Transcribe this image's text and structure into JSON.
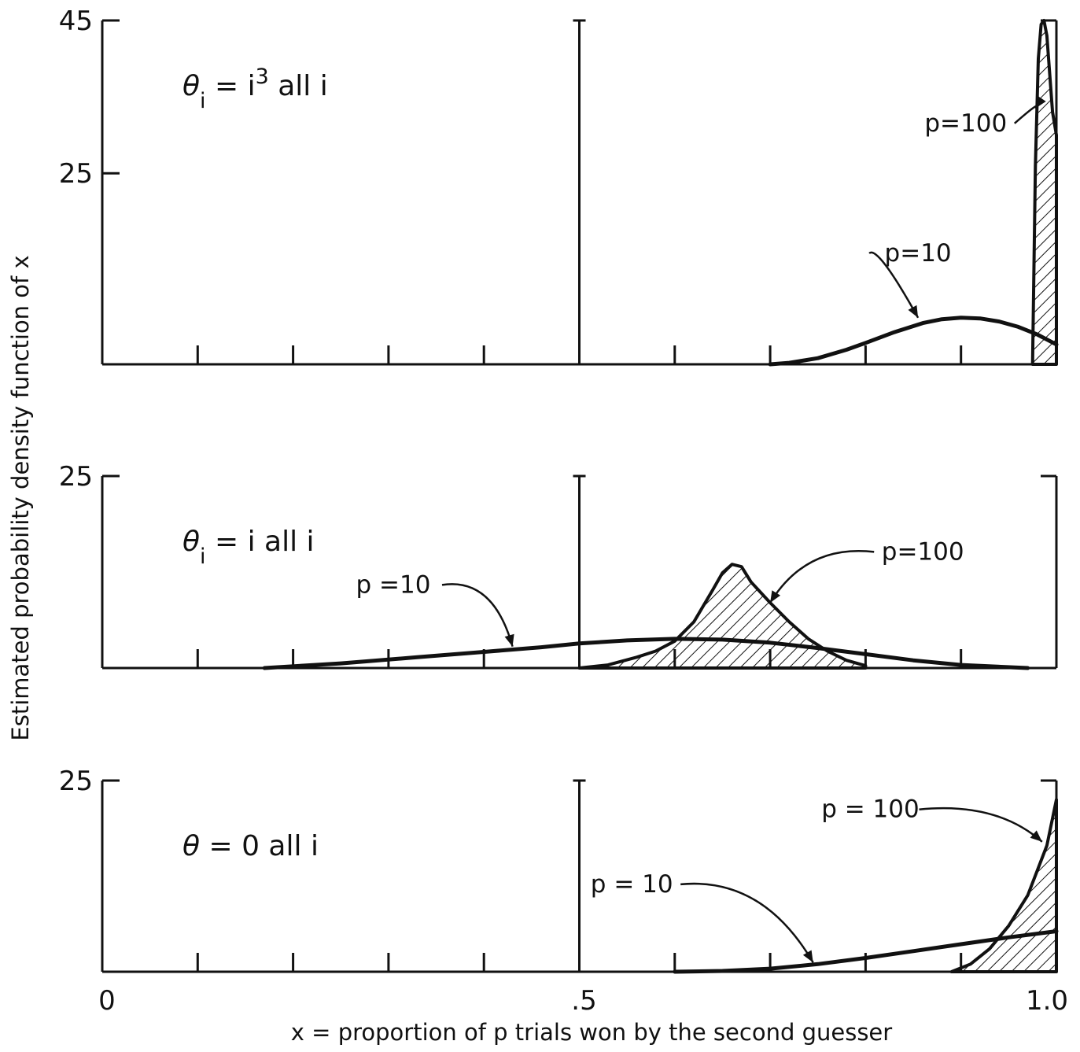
{
  "chart_data": {
    "type": "line",
    "xlabel": "x = proportion of p trials won by the second guesser",
    "ylabel": "Estimated probability density function of x",
    "x_ticks": [
      "0",
      ".5",
      "1.0"
    ],
    "xlim": [
      0,
      1
    ],
    "panels": [
      {
        "label": "θ_i = i³ all i",
        "label_parts": {
          "sym": "θ",
          "sub": "i",
          "mid": " = i",
          "sup": "3",
          "end": " all i"
        },
        "ylim": [
          0,
          45
        ],
        "y_ticks": [
          "25",
          "45"
        ],
        "y_tick_values": [
          25,
          45
        ],
        "series": [
          {
            "name": "p=10",
            "hatched": false,
            "x": [
              0.7,
              0.72,
              0.75,
              0.78,
              0.8,
              0.83,
              0.86,
              0.88,
              0.9,
              0.92,
              0.94,
              0.96,
              0.98,
              1.0
            ],
            "y": [
              0,
              0.2,
              0.8,
              1.9,
              2.8,
              4.2,
              5.4,
              5.9,
              6.1,
              6.0,
              5.6,
              4.9,
              3.9,
              2.6
            ]
          },
          {
            "name": "p=100",
            "hatched": true,
            "x": [
              0.975,
              0.978,
              0.981,
              0.984,
              0.987,
              0.99,
              0.993,
              0.996,
              1.0
            ],
            "y": [
              0,
              26,
              40,
              44.5,
              45,
              43,
              38,
              33,
              30
            ]
          }
        ],
        "annotations": [
          {
            "text": "p=100",
            "series": "p=100",
            "tx": 0.905,
            "ty": 30.5,
            "ax": 0.978,
            "ay": 33.5
          },
          {
            "text": "p=10",
            "series": "p=10",
            "tx": 0.855,
            "ty": 13.5,
            "ax": 0.855,
            "ay": 6.1
          }
        ]
      },
      {
        "label": "θ_i = i all i",
        "label_parts": {
          "sym": "θ",
          "sub": "i",
          "mid": " = i  all  i",
          "sup": "",
          "end": ""
        },
        "ylim": [
          0,
          25
        ],
        "y_ticks": [
          "25"
        ],
        "y_tick_values": [
          25
        ],
        "series": [
          {
            "name": "p=10",
            "hatched": false,
            "x": [
              0.17,
              0.25,
              0.33,
              0.4,
              0.46,
              0.5,
              0.55,
              0.6,
              0.65,
              0.7,
              0.75,
              0.8,
              0.85,
              0.9,
              0.97
            ],
            "y": [
              0,
              0.6,
              1.4,
              2.1,
              2.7,
              3.2,
              3.6,
              3.8,
              3.7,
              3.3,
              2.6,
              1.8,
              1.0,
              0.4,
              0
            ]
          },
          {
            "name": "p=100",
            "hatched": true,
            "x": [
              0.5,
              0.53,
              0.56,
              0.58,
              0.6,
              0.62,
              0.64,
              0.65,
              0.66,
              0.67,
              0.68,
              0.7,
              0.72,
              0.74,
              0.76,
              0.78,
              0.8
            ],
            "y": [
              0,
              0.4,
              1.4,
              2.2,
              3.5,
              6.0,
              10.2,
              12.4,
              13.5,
              13.2,
              11.2,
              8.5,
              6.0,
              3.8,
              2.2,
              1.0,
              0.3
            ]
          }
        ],
        "annotations": [
          {
            "text": "p =10",
            "series": "p=10",
            "tx": 0.305,
            "ty": 9.8,
            "ax": 0.43,
            "ay": 2.8
          },
          {
            "text": "p=100",
            "series": "p=100",
            "tx": 0.86,
            "ty": 14.1,
            "ax": 0.7,
            "ay": 8.5
          }
        ]
      },
      {
        "label": "θ = 0 all i",
        "label_parts": {
          "sym": "θ",
          "sub": "",
          "mid": " = 0  all  i",
          "sup": "",
          "end": ""
        },
        "ylim": [
          0,
          25
        ],
        "y_ticks": [
          "25"
        ],
        "y_tick_values": [
          25
        ],
        "series": [
          {
            "name": "p=10",
            "hatched": false,
            "x": [
              0.6,
              0.65,
              0.7,
              0.75,
              0.8,
              0.85,
              0.9,
              0.95,
              1.0
            ],
            "y": [
              0,
              0.1,
              0.4,
              1.0,
              1.8,
              2.7,
              3.6,
              4.5,
              5.3
            ]
          },
          {
            "name": "p=100",
            "hatched": true,
            "x": [
              0.89,
              0.91,
              0.93,
              0.95,
              0.97,
              0.99,
              1.0
            ],
            "y": [
              0,
              1.0,
              3.0,
              6.0,
              10.0,
              16.5,
              22.5
            ]
          }
        ],
        "annotations": [
          {
            "text": "p = 100",
            "series": "p=100",
            "tx": 0.805,
            "ty": 20.2,
            "ax": 0.985,
            "ay": 17
          },
          {
            "text": "p = 10",
            "series": "p=10",
            "tx": 0.555,
            "ty": 10.4,
            "ax": 0.745,
            "ay": 1.2
          }
        ]
      }
    ]
  }
}
